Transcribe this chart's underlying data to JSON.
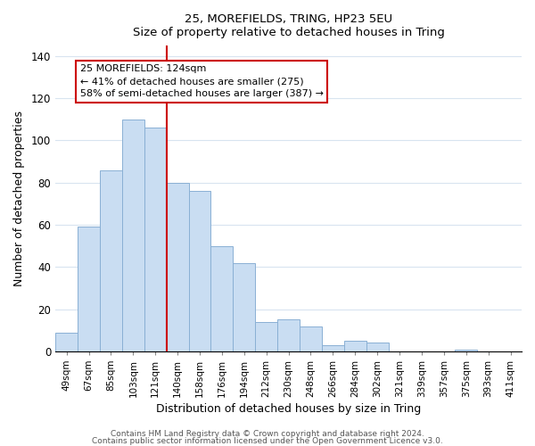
{
  "title": "25, MOREFIELDS, TRING, HP23 5EU",
  "subtitle": "Size of property relative to detached houses in Tring",
  "xlabel": "Distribution of detached houses by size in Tring",
  "ylabel": "Number of detached properties",
  "bar_labels": [
    "49sqm",
    "67sqm",
    "85sqm",
    "103sqm",
    "121sqm",
    "140sqm",
    "158sqm",
    "176sqm",
    "194sqm",
    "212sqm",
    "230sqm",
    "248sqm",
    "266sqm",
    "284sqm",
    "302sqm",
    "321sqm",
    "339sqm",
    "357sqm",
    "375sqm",
    "393sqm",
    "411sqm"
  ],
  "bar_values": [
    9,
    59,
    86,
    110,
    106,
    80,
    76,
    50,
    42,
    14,
    15,
    12,
    3,
    5,
    4,
    0,
    0,
    0,
    1,
    0,
    0
  ],
  "bar_color": "#c9ddf2",
  "bar_edge_color": "#8ab0d4",
  "vline_x": 4.5,
  "vline_color": "#cc0000",
  "annotation_title": "25 MOREFIELDS: 124sqm",
  "annotation_line1": "← 41% of detached houses are smaller (275)",
  "annotation_line2": "58% of semi-detached houses are larger (387) →",
  "annotation_box_color": "#ffffff",
  "annotation_box_edge": "#cc0000",
  "ylim": [
    0,
    145
  ],
  "yticks": [
    0,
    20,
    40,
    60,
    80,
    100,
    120,
    140
  ],
  "footnote1": "Contains HM Land Registry data © Crown copyright and database right 2024.",
  "footnote2": "Contains public sector information licensed under the Open Government Licence v3.0."
}
